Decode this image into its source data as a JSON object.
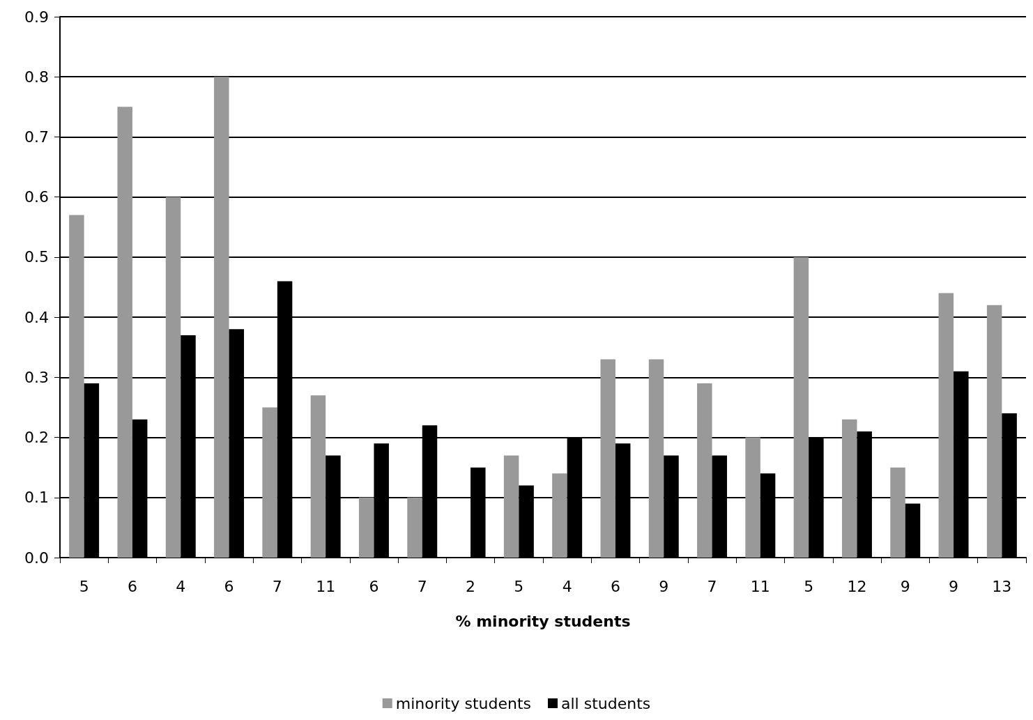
{
  "chart_data": {
    "type": "bar",
    "xlabel": "% minority students",
    "categories": [
      "5",
      "6",
      "4",
      "6",
      "7",
      "11",
      "6",
      "7",
      "2",
      "5",
      "4",
      "6",
      "9",
      "7",
      "11",
      "5",
      "12",
      "9",
      "9",
      "13"
    ],
    "series": [
      {
        "name": "minority students",
        "color": "#999999",
        "values": [
          0.57,
          0.75,
          0.6,
          0.8,
          0.25,
          0.27,
          0.1,
          0.1,
          0,
          0.17,
          0.14,
          0.33,
          0.33,
          0.29,
          0.2,
          0.5,
          0.23,
          0.15,
          0.44,
          0.42
        ]
      },
      {
        "name": "all students",
        "color": "#000000",
        "values": [
          0.29,
          0.23,
          0.37,
          0.38,
          0.46,
          0.17,
          0.19,
          0.22,
          0.15,
          0.12,
          0.2,
          0.19,
          0.17,
          0.17,
          0.14,
          0.2,
          0.21,
          0.09,
          0.31,
          0.24
        ]
      }
    ],
    "ylim": [
      0,
      0.9
    ],
    "yticks": [
      {
        "value": 0,
        "label": "0.0"
      },
      0.1,
      0.2,
      0.3,
      0.4,
      0.5,
      0.6,
      0.7,
      0.8,
      0.9
    ],
    "grid": "y",
    "legend": "bottom"
  }
}
